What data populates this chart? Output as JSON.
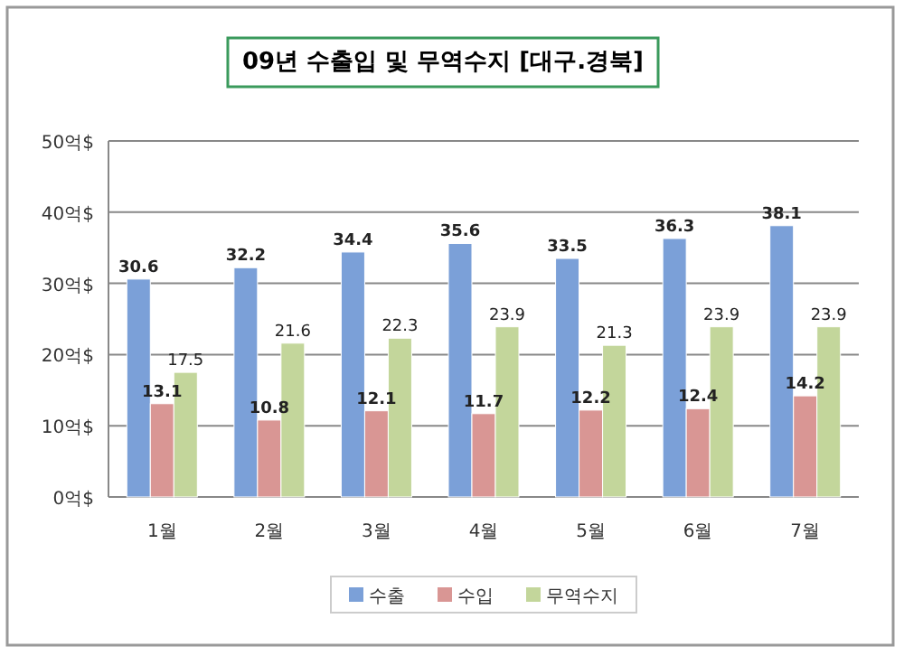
{
  "chart_data": {
    "type": "bar",
    "title": "09년 수출입 및 무역수지 [대구.경북]",
    "categories": [
      "1월",
      "2월",
      "3월",
      "4월",
      "5월",
      "6월",
      "7월"
    ],
    "series": [
      {
        "name": "수출",
        "color": "#7ba0d8",
        "values": [
          30.6,
          32.2,
          34.4,
          35.6,
          33.5,
          36.3,
          38.1
        ]
      },
      {
        "name": "수입",
        "color": "#d99694",
        "values": [
          13.1,
          10.8,
          12.1,
          11.7,
          12.2,
          12.4,
          14.2
        ]
      },
      {
        "name": "무역수지",
        "color": "#c3d69b",
        "values": [
          17.5,
          21.6,
          22.3,
          23.9,
          21.3,
          23.9,
          23.9
        ]
      }
    ],
    "ylim": [
      0,
      50
    ],
    "yticks": [
      {
        "value": 0,
        "label": "0억$"
      },
      {
        "value": 10,
        "label": "10억$"
      },
      {
        "value": 20,
        "label": "20억$"
      },
      {
        "value": 30,
        "label": "30억$"
      },
      {
        "value": 40,
        "label": "40억$"
      },
      {
        "value": 50,
        "label": "50억$"
      }
    ],
    "grid": "y",
    "legend": "bottom",
    "data_labels": true
  }
}
